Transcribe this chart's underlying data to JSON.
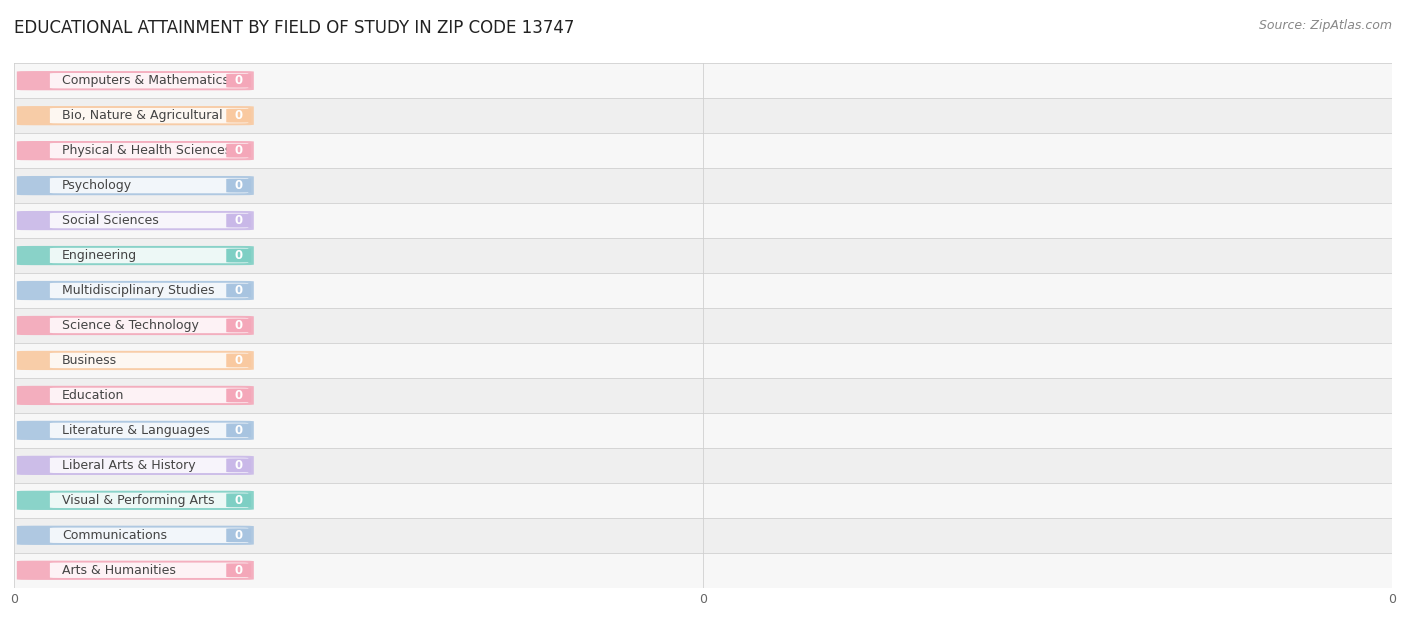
{
  "title": "EDUCATIONAL ATTAINMENT BY FIELD OF STUDY IN ZIP CODE 13747",
  "source": "Source: ZipAtlas.com",
  "categories": [
    "Computers & Mathematics",
    "Bio, Nature & Agricultural",
    "Physical & Health Sciences",
    "Psychology",
    "Social Sciences",
    "Engineering",
    "Multidisciplinary Studies",
    "Science & Technology",
    "Business",
    "Education",
    "Literature & Languages",
    "Liberal Arts & History",
    "Visual & Performing Arts",
    "Communications",
    "Arts & Humanities"
  ],
  "values": [
    0,
    0,
    0,
    0,
    0,
    0,
    0,
    0,
    0,
    0,
    0,
    0,
    0,
    0,
    0
  ],
  "bar_colors": [
    "#F4A7B9",
    "#F9C9A0",
    "#F4A7B9",
    "#A8C4E0",
    "#C9B8E8",
    "#7ECFC4",
    "#A8C4E0",
    "#F4A7B9",
    "#F9C9A0",
    "#F4A7B9",
    "#A8C4E0",
    "#C9B8E8",
    "#7ECFC4",
    "#A8C4E0",
    "#F4A7B9"
  ],
  "row_colors": [
    "#f7f7f7",
    "#efefef"
  ],
  "bar_height": 0.55,
  "title_fontsize": 12,
  "label_fontsize": 9,
  "value_fontsize": 8.5,
  "source_fontsize": 9
}
